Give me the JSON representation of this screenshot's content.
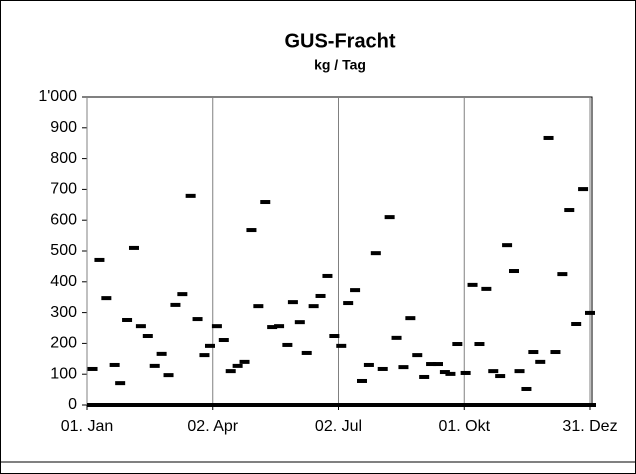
{
  "chart_data": {
    "type": "scatter",
    "title": "GUS-Fracht",
    "subtitle": "kg / Tag",
    "x": [
      5,
      10,
      15,
      21,
      25,
      30,
      35,
      40,
      45,
      50,
      55,
      60,
      65,
      70,
      76,
      81,
      86,
      90,
      95,
      100,
      105,
      110,
      115,
      120,
      125,
      130,
      135,
      140,
      146,
      150,
      155,
      160,
      165,
      170,
      175,
      180,
      185,
      190,
      195,
      200,
      205,
      210,
      215,
      220,
      225,
      230,
      235,
      240,
      245,
      250,
      255,
      260,
      264,
      269,
      275,
      280,
      285,
      290,
      295,
      300,
      305,
      310,
      314,
      319,
      324,
      329,
      335,
      340,
      345,
      350,
      355,
      360,
      365
    ],
    "values": [
      117,
      471,
      347,
      130,
      71,
      276,
      510,
      256,
      224,
      127,
      166,
      97,
      325,
      360,
      679,
      279,
      162,
      192,
      256,
      211,
      110,
      127,
      140,
      568,
      321,
      659,
      253,
      256,
      195,
      334,
      269,
      169,
      321,
      354,
      419,
      224,
      192,
      331,
      373,
      78,
      130,
      493,
      117,
      610,
      218,
      123,
      282,
      162,
      91,
      133,
      133,
      107,
      101,
      198,
      104,
      390,
      198,
      377,
      110,
      94,
      519,
      435,
      110,
      52,
      172,
      140,
      867,
      172,
      425,
      633,
      263,
      701,
      299
    ],
    "color": "#000000",
    "xlim": [
      1,
      365
    ],
    "xticks": [
      {
        "value": 1,
        "label": "01. Jan"
      },
      {
        "value": 92,
        "label": "02. Apr"
      },
      {
        "value": 183,
        "label": "02. Jul"
      },
      {
        "value": 274,
        "label": "01. Okt"
      },
      {
        "value": 365,
        "label": "31. Dez"
      }
    ],
    "ylim": [
      0,
      1000
    ],
    "yticks": [
      0,
      100,
      200,
      300,
      400,
      500,
      600,
      700,
      800,
      900,
      {
        "value": 1000,
        "label": "1'000"
      }
    ],
    "grid": true
  }
}
